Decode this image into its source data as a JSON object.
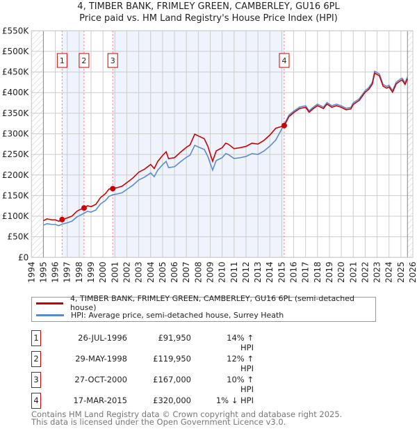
{
  "chart_data": {
    "type": "line",
    "title": "4, TIMBER BANK, FRIMLEY GREEN, CAMBERLEY, GU16 6PL",
    "subtitle": "Price paid vs. HM Land Registry's House Price Index (HPI)",
    "xlim": [
      1994,
      2026
    ],
    "ylim": [
      0,
      550000
    ],
    "y_ticks": [
      0,
      50000,
      100000,
      150000,
      200000,
      250000,
      300000,
      350000,
      400000,
      450000,
      500000,
      550000
    ],
    "y_tick_labels": [
      "£0",
      "£50K",
      "£100K",
      "£150K",
      "£200K",
      "£250K",
      "£300K",
      "£350K",
      "£400K",
      "£450K",
      "£500K",
      "£550K"
    ],
    "x_ticks": [
      "1994",
      "1995",
      "1996",
      "1997",
      "1998",
      "1999",
      "2000",
      "2001",
      "2002",
      "2003",
      "2004",
      "2005",
      "2006",
      "2007",
      "2008",
      "2009",
      "2010",
      "2011",
      "2012",
      "2013",
      "2014",
      "2015",
      "2016",
      "2017",
      "2018",
      "2019",
      "2020",
      "2021",
      "2022",
      "2023",
      "2024",
      "2025",
      "2026"
    ],
    "data_range": [
      1995.0,
      2025.55
    ],
    "grid": true,
    "colors": {
      "property": "#cc0000",
      "hpi": "#5b8bd0",
      "shade": "#eef3fc",
      "marker_line": "#ff6666"
    },
    "hpi_series": {
      "name": "HPI: Average price, semi-detached house, Surrey Heath",
      "x": [
        1995.0,
        1995.3,
        1995.7,
        1996.0,
        1996.3,
        1996.57,
        1997.0,
        1997.4,
        1997.8,
        1998.0,
        1998.41,
        1998.7,
        1999.0,
        1999.4,
        1999.8,
        2000.2,
        2000.5,
        2000.82,
        2001.2,
        2001.6,
        2002.0,
        2002.5,
        2003.0,
        2003.5,
        2004.0,
        2004.3,
        2004.6,
        2005.0,
        2005.3,
        2005.5,
        2006.0,
        2006.5,
        2007.0,
        2007.3,
        2007.7,
        2008.0,
        2008.5,
        2008.8,
        2009.2,
        2009.5,
        2010.0,
        2010.3,
        2010.5,
        2011.0,
        2011.5,
        2012.0,
        2012.5,
        2013.0,
        2013.5,
        2014.0,
        2014.5,
        2015.21,
        2015.6,
        2016.0,
        2016.5,
        2017.0,
        2017.3,
        2017.7,
        2018.0,
        2018.5,
        2018.8,
        2019.2,
        2019.6,
        2020.0,
        2020.4,
        2020.8,
        2021.0,
        2021.5,
        2022.0,
        2022.3,
        2022.6,
        2022.8,
        2023.2,
        2023.5,
        2023.8,
        2024.0,
        2024.3,
        2024.6,
        2024.9,
        2025.1,
        2025.35,
        2025.55
      ],
      "values": [
        78000,
        82000,
        80000,
        80000,
        77000,
        80600,
        84000,
        88000,
        98000,
        101000,
        107000,
        112000,
        110000,
        115000,
        130000,
        138000,
        148000,
        152000,
        154000,
        157000,
        165000,
        175000,
        188000,
        195000,
        205000,
        196000,
        212000,
        225000,
        233000,
        218000,
        220000,
        232000,
        243000,
        248000,
        272000,
        268000,
        262000,
        245000,
        212000,
        235000,
        242000,
        252000,
        250000,
        240000,
        242000,
        245000,
        252000,
        250000,
        258000,
        270000,
        285000,
        323000,
        345000,
        355000,
        365000,
        368000,
        356000,
        366000,
        372000,
        365000,
        376000,
        368000,
        372000,
        368000,
        362000,
        364000,
        375000,
        385000,
        405000,
        412000,
        425000,
        452000,
        445000,
        420000,
        415000,
        418000,
        405000,
        425000,
        432000,
        435000,
        424000,
        438000
      ]
    },
    "property_series": {
      "name": "4, TIMBER BANK, FRIMLEY GREEN, CAMBERLEY, GU16 6PL (semi-detached house)"
    },
    "sales": [
      {
        "n": "1",
        "x": 1996.57,
        "date": "26-JUL-1996",
        "value": 91950,
        "price": "£91,950",
        "hpi": "14% ↑ HPI",
        "ratio": 1.14
      },
      {
        "n": "2",
        "x": 1998.41,
        "date": "29-MAY-1998",
        "value": 119950,
        "price": "£119,950",
        "hpi": "12% ↑ HPI",
        "ratio": 1.12
      },
      {
        "n": "3",
        "x": 2000.82,
        "date": "27-OCT-2000",
        "value": 167000,
        "price": "£167,000",
        "hpi": "10% ↑ HPI",
        "ratio": 1.1
      },
      {
        "n": "4",
        "x": 2015.21,
        "date": "17-MAR-2015",
        "value": 320000,
        "price": "£320,000",
        "hpi": "1% ↓ HPI",
        "ratio": 0.99
      }
    ]
  },
  "legend": {
    "property": "4, TIMBER BANK, FRIMLEY GREEN, CAMBERLEY, GU16 6PL (semi-detached house)",
    "hpi": "HPI: Average price, semi-detached house, Surrey Heath"
  },
  "footer": {
    "line1": "Contains HM Land Registry data © Crown copyright and database right 2025.",
    "line2": "This data is licensed under the Open Government Licence v3.0."
  }
}
